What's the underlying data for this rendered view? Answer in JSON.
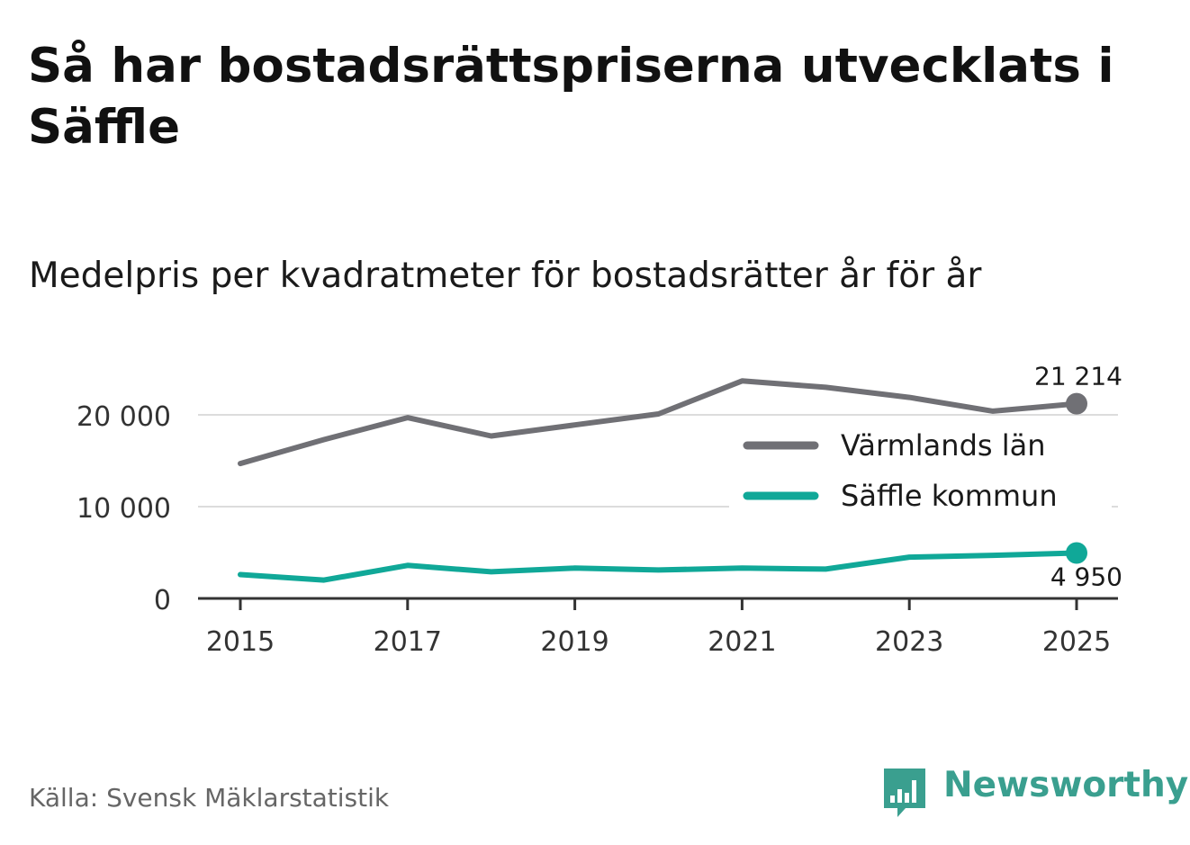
{
  "title": "Så har bostadsrättspriserna utvecklats i Säffle",
  "subtitle": "Medelpris per kvadratmeter för bostadsrätter år för år",
  "source": "Källa: Svensk Mäklarstatistik",
  "brand": {
    "name": "Newsworthy",
    "icon": "newsworthy-logo-icon",
    "color": "#3a9f8f"
  },
  "chart_data": {
    "type": "line",
    "title": "Så har bostadsrättspriserna utvecklats i Säffle",
    "subtitle": "Medelpris per kvadratmeter för bostadsrätter år för år",
    "xlabel": "",
    "ylabel": "",
    "x": [
      2015,
      2016,
      2017,
      2018,
      2019,
      2020,
      2021,
      2022,
      2023,
      2024,
      2025
    ],
    "xticks": [
      "2015",
      "2017",
      "2019",
      "2021",
      "2023",
      "2025"
    ],
    "xlim": [
      2015,
      2025
    ],
    "ylim": [
      0,
      22000
    ],
    "yticks": [
      0,
      10000,
      20000
    ],
    "ytick_labels": [
      "0",
      "10 000",
      "20 000"
    ],
    "grid": true,
    "legend_position": "right",
    "series": [
      {
        "name": "Värmlands län",
        "color": "#707075",
        "values": [
          14700,
          17300,
          19700,
          17700,
          18900,
          20100,
          23700,
          23000,
          21900,
          20400,
          21214
        ],
        "end_label": "21 214"
      },
      {
        "name": "Säffle kommun",
        "color": "#10a898",
        "values": [
          2600,
          2000,
          3600,
          2900,
          3300,
          3100,
          3300,
          3200,
          4500,
          4700,
          4950
        ],
        "end_label": "4 950"
      }
    ]
  }
}
